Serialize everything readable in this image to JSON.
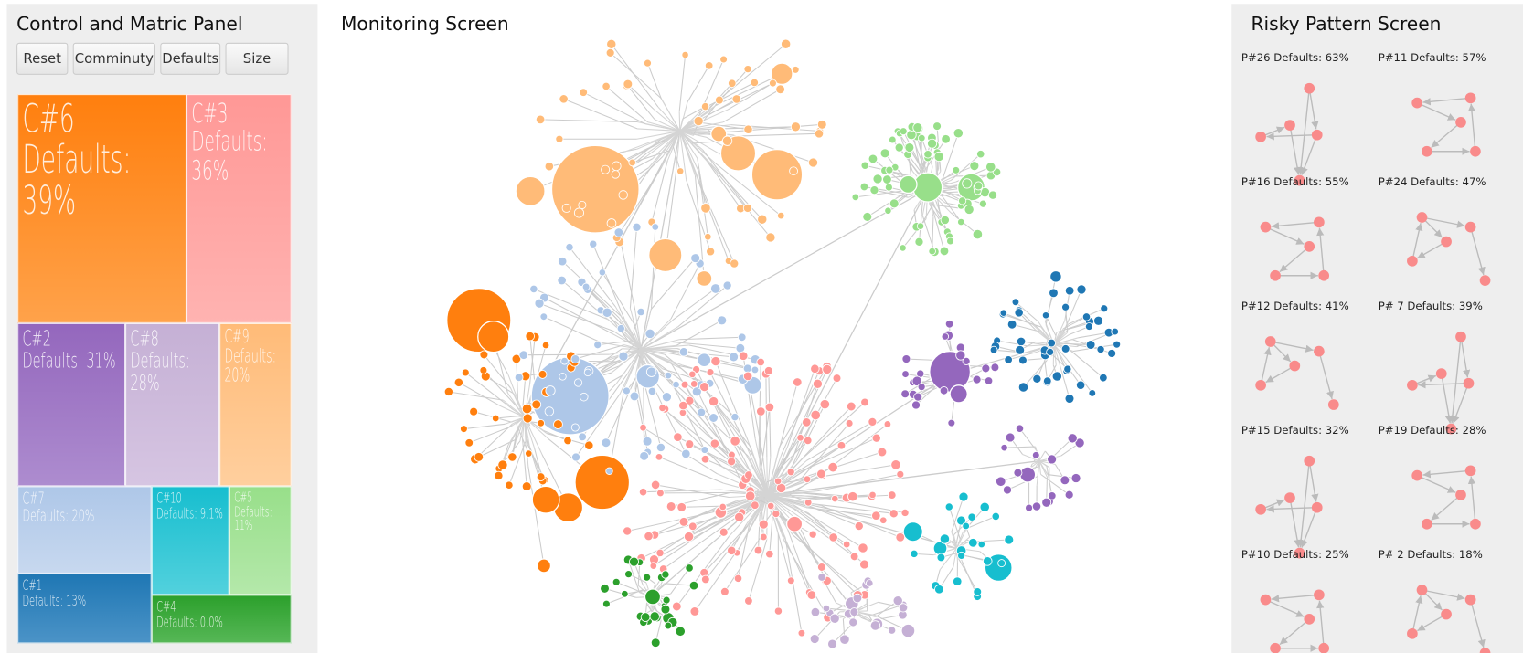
{
  "left_panel": {
    "title": "Control and Matric Panel",
    "buttons": [
      "Reset",
      "Comminuty",
      "Defaults",
      "Size"
    ],
    "treemap": [
      {
        "label": "C#6",
        "text": "Defaults: 39%"
      },
      {
        "label": "C#3",
        "text": "Defaults: 36%"
      },
      {
        "label": "C#2",
        "text": "Defaults: 31%"
      },
      {
        "label": "C#8",
        "text": "Defaults: 28%"
      },
      {
        "label": "C#9",
        "text": "Defaults: 20%"
      },
      {
        "label": "C#7",
        "text": "Defaults: 20%"
      },
      {
        "label": "C#1",
        "text": "Defaults: 13%"
      },
      {
        "label": "C#10",
        "text": "Defaults: 9.1%"
      },
      {
        "label": "C#5",
        "text": "Defaults: 11%"
      },
      {
        "label": "C#4",
        "text": "Defaults: 0.0%"
      }
    ]
  },
  "monitoring": {
    "title": "Monitoring Screen"
  },
  "right_panel": {
    "title": "Risky Pattern Screen",
    "patterns": [
      "P#26 Defaults: 63%",
      "P#11 Defaults: 57%",
      "P#16 Defaults: 55%",
      "P#24 Defaults: 47%",
      "P#12 Defaults: 41%",
      "P# 7 Defaults: 39%",
      "P#15 Defaults: 32%",
      "P#19 Defaults: 28%",
      "P#10 Defaults: 25%",
      "P# 2 Defaults: 18%"
    ]
  }
}
